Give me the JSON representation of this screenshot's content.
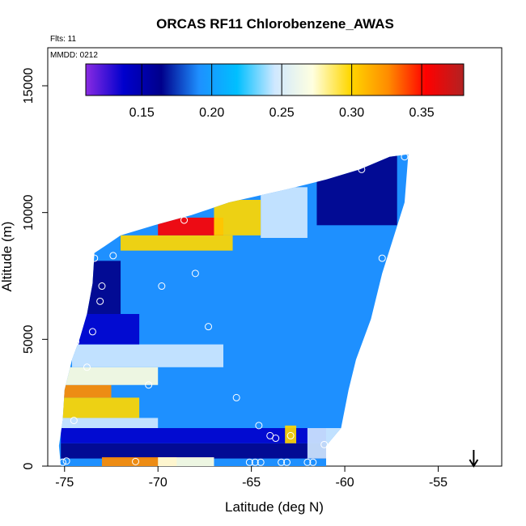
{
  "chart_data": {
    "type": "heatmap",
    "title": "ORCAS RF11 Chlorobenzene_AWAS",
    "annotations": {
      "flights": "Flts: 11",
      "date": "MMDD: 0212"
    },
    "xlabel": "Latitude (deg N)",
    "ylabel": "Altitude (m)",
    "xlim": [
      -75.9,
      -51.6
    ],
    "ylim": [
      0,
      16500
    ],
    "xticks": [
      -75,
      -70,
      -65,
      -60,
      -55
    ],
    "xtick_labels": [
      "-75",
      "-70",
      "-65",
      "-60",
      "-55"
    ],
    "yticks": [
      0,
      5000,
      10000,
      15000
    ],
    "ytick_labels": [
      "0",
      "5000",
      "10000",
      "15000"
    ],
    "colorbar": {
      "range": [
        0.11,
        0.38
      ],
      "ticks": [
        0.15,
        0.2,
        0.25,
        0.3,
        0.35
      ],
      "tick_labels": [
        "0.15",
        "0.20",
        "0.25",
        "0.30",
        "0.35"
      ],
      "colors": [
        "#8a2be2",
        "#0000cd",
        "#00008b",
        "#1e90ff",
        "#00bfff",
        "#cfe8ff",
        "#ffffe0",
        "#ffd700",
        "#ff8c00",
        "#ff0000",
        "#b22222"
      ]
    },
    "arrow_marker": {
      "x": -53.1,
      "direction": "down"
    },
    "grid": false,
    "sample_points": [
      {
        "x": -75.1,
        "y": 150
      },
      {
        "x": -74.9,
        "y": 200
      },
      {
        "x": -74.5,
        "y": 1800
      },
      {
        "x": -74.4,
        "y": 4900
      },
      {
        "x": -73.8,
        "y": 3900
      },
      {
        "x": -73.5,
        "y": 5300
      },
      {
        "x": -73.1,
        "y": 6500
      },
      {
        "x": -73.0,
        "y": 7100
      },
      {
        "x": -73.4,
        "y": 8200
      },
      {
        "x": -72.4,
        "y": 8300
      },
      {
        "x": -71.2,
        "y": 180
      },
      {
        "x": -70.5,
        "y": 3200
      },
      {
        "x": -69.8,
        "y": 7100
      },
      {
        "x": -68.0,
        "y": 7600
      },
      {
        "x": -68.6,
        "y": 9700
      },
      {
        "x": -67.3,
        "y": 5500
      },
      {
        "x": -65.8,
        "y": 2700
      },
      {
        "x": -64.6,
        "y": 1600
      },
      {
        "x": -64.0,
        "y": 1200
      },
      {
        "x": -63.7,
        "y": 1100
      },
      {
        "x": -62.9,
        "y": 1200
      },
      {
        "x": -65.1,
        "y": 150
      },
      {
        "x": -64.8,
        "y": 150
      },
      {
        "x": -64.5,
        "y": 150
      },
      {
        "x": -63.4,
        "y": 150
      },
      {
        "x": -63.1,
        "y": 150
      },
      {
        "x": -62.0,
        "y": 150
      },
      {
        "x": -61.7,
        "y": 150
      },
      {
        "x": -61.1,
        "y": 850
      },
      {
        "x": -59.1,
        "y": 11700
      },
      {
        "x": -58.0,
        "y": 8200
      },
      {
        "x": -56.8,
        "y": 12200
      }
    ]
  }
}
